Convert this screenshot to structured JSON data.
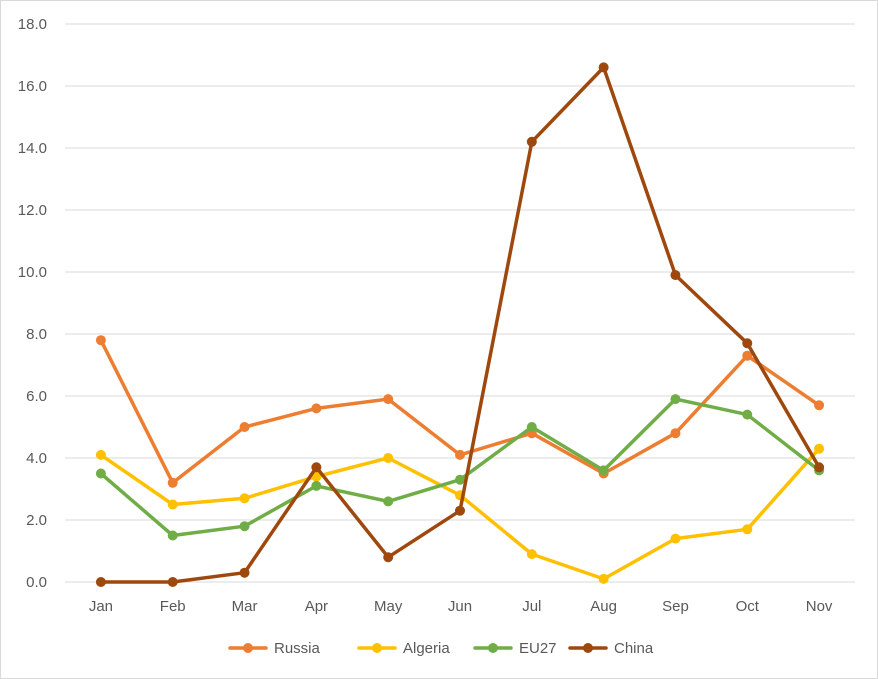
{
  "chart_data": {
    "type": "line",
    "title": "",
    "xlabel": "",
    "ylabel": "",
    "categories": [
      "Jan",
      "Feb",
      "Mar",
      "Apr",
      "May",
      "Jun",
      "Jul",
      "Aug",
      "Sep",
      "Oct",
      "Nov"
    ],
    "ylim": [
      0,
      18
    ],
    "yticks": [
      "0.0",
      "2.0",
      "4.0",
      "6.0",
      "8.0",
      "10.0",
      "12.0",
      "14.0",
      "16.0",
      "18.0"
    ],
    "grid": "horizontal",
    "legend_position": "bottom",
    "series": [
      {
        "name": "Russia",
        "color": "#ED7D31",
        "values": [
          7.8,
          3.2,
          5.0,
          5.6,
          5.9,
          4.1,
          4.8,
          3.5,
          4.8,
          7.3,
          5.7
        ]
      },
      {
        "name": "Algeria",
        "color": "#FFC000",
        "values": [
          4.1,
          2.5,
          2.7,
          3.4,
          4.0,
          2.8,
          0.9,
          0.1,
          1.4,
          1.7,
          4.3
        ]
      },
      {
        "name": "EU27",
        "color": "#70AD47",
        "values": [
          3.5,
          1.5,
          1.8,
          3.1,
          2.6,
          3.3,
          5.0,
          3.6,
          5.9,
          5.4,
          3.6
        ]
      },
      {
        "name": "China",
        "color": "#9E480E",
        "values": [
          0.0,
          0.0,
          0.3,
          3.7,
          0.8,
          2.3,
          14.2,
          16.6,
          9.9,
          7.7,
          3.7
        ]
      }
    ]
  }
}
